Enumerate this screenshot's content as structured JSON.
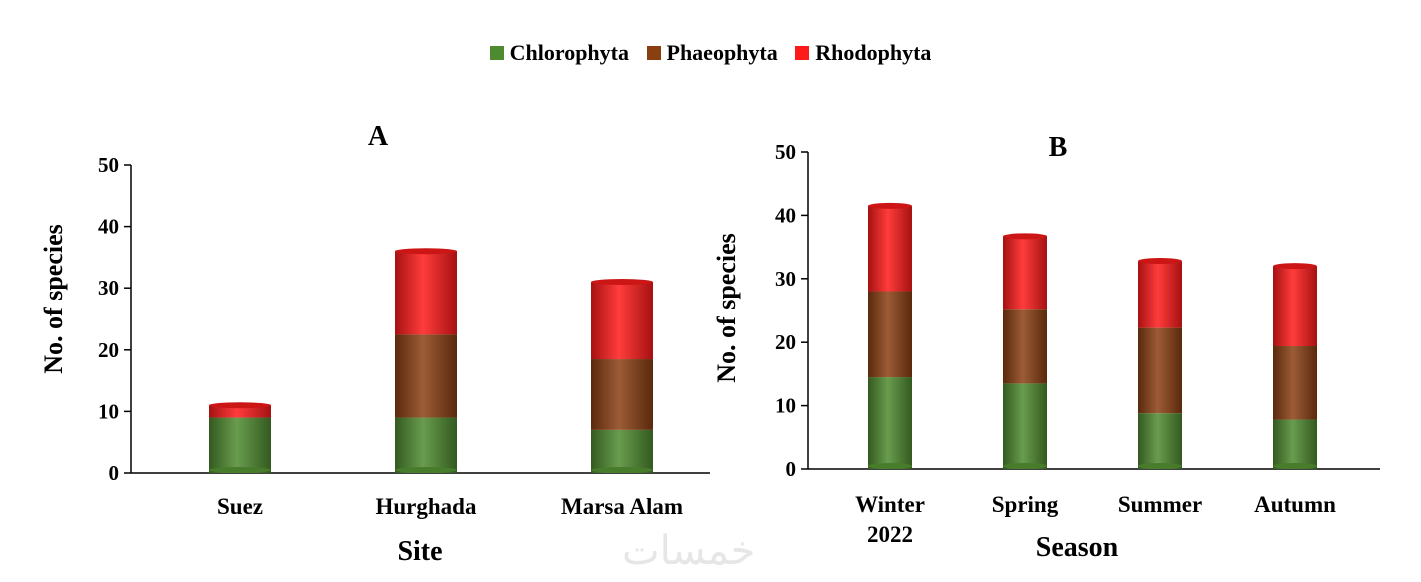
{
  "legend": [
    {
      "name": "Chlorophyta",
      "color": "#4e8a2f"
    },
    {
      "name": "Phaeophyta",
      "color": "#8a3f12"
    },
    {
      "name": "Rhodophyta",
      "color": "#ff1a1a"
    }
  ],
  "watermark": "خمسات",
  "chart_data": [
    {
      "type": "bar",
      "stacked": true,
      "title": "A",
      "xlabel": "Site",
      "ylabel": "No. of species",
      "ylim": [
        0,
        50
      ],
      "yticks": [
        0,
        10,
        20,
        30,
        40,
        50
      ],
      "categories": [
        "Suez",
        "Hurghada",
        "Marsa Alam"
      ],
      "series": [
        {
          "name": "Chlorophyta",
          "color": "#4e8a2f",
          "values": [
            9,
            9,
            7
          ]
        },
        {
          "name": "Phaeophyta",
          "color": "#8a3f12",
          "values": [
            0,
            13.5,
            11.5
          ]
        },
        {
          "name": "Rhodophyta",
          "color": "#ff1a1a",
          "values": [
            2,
            13.5,
            12.5
          ]
        }
      ]
    },
    {
      "type": "bar",
      "stacked": true,
      "title": "B",
      "xlabel": "Season",
      "ylabel": "No. of species",
      "ylim": [
        0,
        50
      ],
      "yticks": [
        0,
        10,
        20,
        30,
        40,
        50
      ],
      "categories": [
        "Winter 2022",
        "Spring",
        "Summer",
        "Autumn"
      ],
      "category_lines": [
        [
          "Winter",
          "2022"
        ],
        [
          "Spring"
        ],
        [
          "Summer"
        ],
        [
          "Autumn"
        ]
      ],
      "series": [
        {
          "name": "Chlorophyta",
          "color": "#4e8a2f",
          "values": [
            14.5,
            13.5,
            8.8,
            7.8
          ]
        },
        {
          "name": "Phaeophyta",
          "color": "#8a3f12",
          "values": [
            13.5,
            11.7,
            13.5,
            11.6
          ]
        },
        {
          "name": "Rhodophyta",
          "color": "#ff1a1a",
          "values": [
            13.5,
            11.5,
            10.5,
            12.6
          ]
        }
      ]
    }
  ]
}
